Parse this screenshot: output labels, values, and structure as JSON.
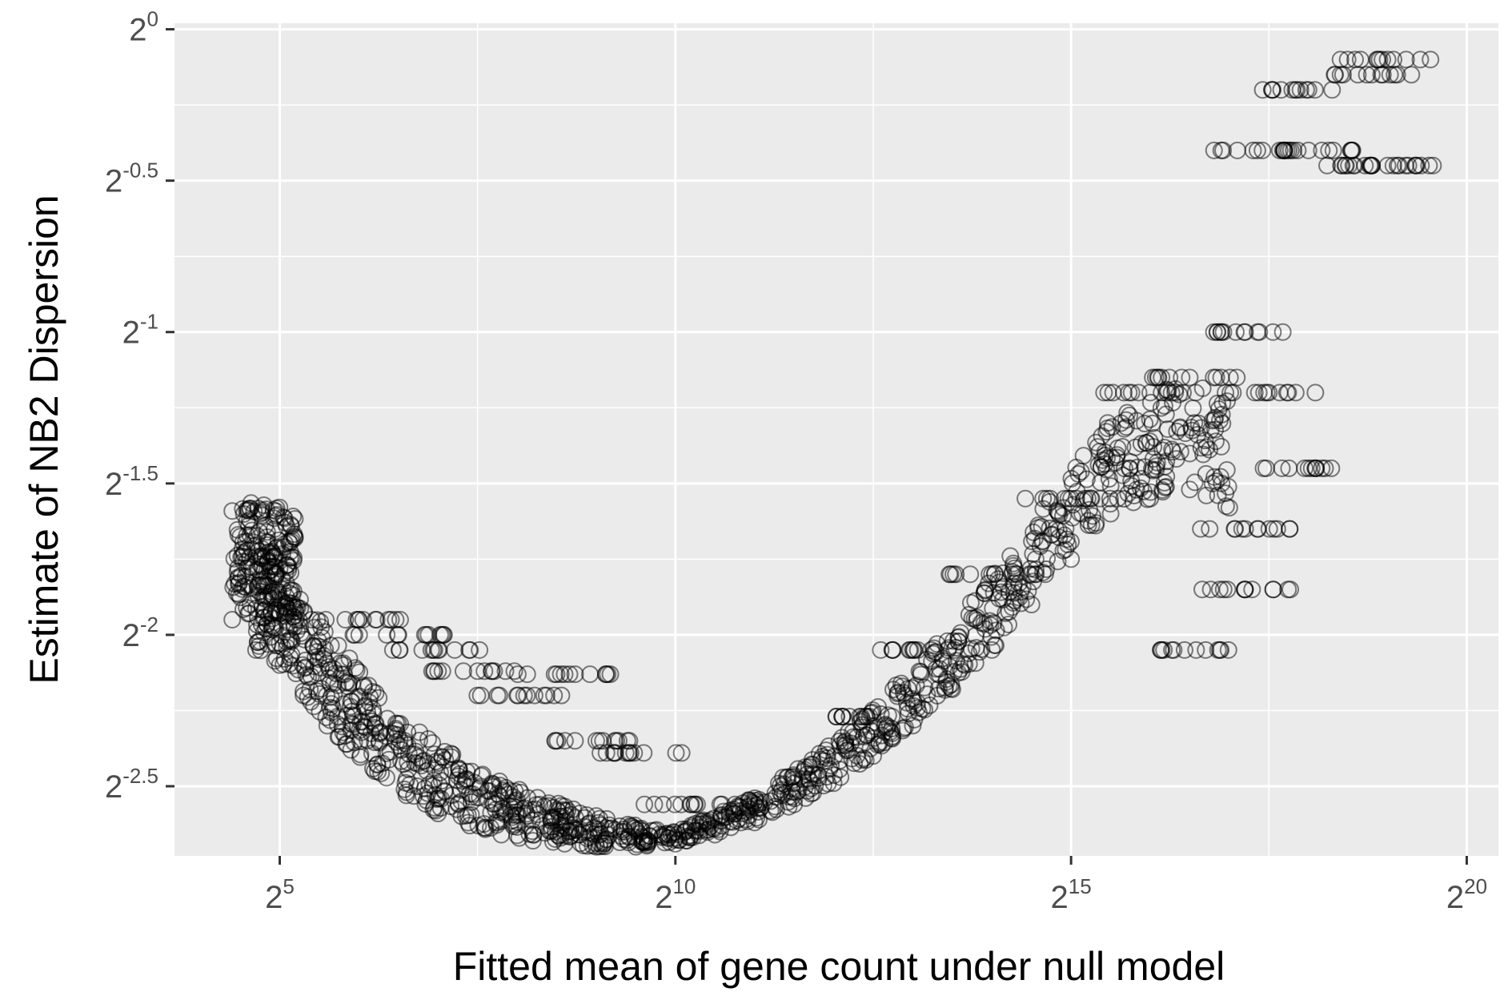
{
  "chart_data": {
    "type": "scatter",
    "title": "",
    "xlabel": "Fitted mean of gene count under null model",
    "ylabel": "Estimate of NB2 Dispersion",
    "x_scale": "log2",
    "y_scale": "log2",
    "xlim_log2": [
      3.67,
      20.4
    ],
    "ylim_log2": [
      -2.73,
      0.02
    ],
    "x_ticks": [
      {
        "base": "2",
        "exp": "5",
        "value": 5
      },
      {
        "base": "2",
        "exp": "10",
        "value": 10
      },
      {
        "base": "2",
        "exp": "15",
        "value": 15
      },
      {
        "base": "2",
        "exp": "20",
        "value": 20
      }
    ],
    "y_ticks": [
      {
        "base": "2",
        "exp": "0",
        "value": 0
      },
      {
        "base": "2",
        "exp": "-0.5",
        "value": -0.5
      },
      {
        "base": "2",
        "exp": "-1",
        "value": -1
      },
      {
        "base": "2",
        "exp": "-1.5",
        "value": -1.5
      },
      {
        "base": "2",
        "exp": "-2",
        "value": -2
      },
      {
        "base": "2",
        "exp": "-2.5",
        "value": -2.5
      }
    ],
    "grid": true,
    "point_style": "open circle, black, semi-transparent",
    "colors": {
      "panel": "#ebebeb",
      "grid": "#ffffff",
      "points": "#000000",
      "tick_text": "#4d4d4d"
    },
    "series": [
      {
        "description_values": "log2 values of (fitted mean, dispersion)",
        "points": [
          [
            4.4,
            -1.95
          ],
          [
            4.6,
            -1.93
          ],
          [
            4.8,
            -1.92
          ],
          [
            5.0,
            -1.93
          ],
          [
            5.2,
            -1.95
          ],
          [
            4.7,
            -2.05
          ],
          [
            5.0,
            -2.1
          ],
          [
            5.3,
            -2.2
          ],
          [
            5.6,
            -2.3
          ],
          [
            5.9,
            -2.38
          ],
          [
            6.2,
            -2.45
          ],
          [
            6.6,
            -2.53
          ],
          [
            7.0,
            -2.59
          ],
          [
            7.4,
            -2.63
          ],
          [
            7.8,
            -2.66
          ],
          [
            8.2,
            -2.68
          ],
          [
            8.6,
            -2.69
          ],
          [
            9.0,
            -2.7
          ],
          [
            9.5,
            -2.7
          ],
          [
            10.0,
            -2.69
          ],
          [
            10.5,
            -2.66
          ],
          [
            11.0,
            -2.62
          ],
          [
            11.5,
            -2.56
          ],
          [
            12.0,
            -2.49
          ],
          [
            12.5,
            -2.4
          ],
          [
            13.0,
            -2.3
          ],
          [
            13.5,
            -2.18
          ],
          [
            14.0,
            -2.05
          ],
          [
            14.5,
            -1.9
          ],
          [
            15.0,
            -1.75
          ],
          [
            15.5,
            -1.6
          ],
          [
            16.0,
            -1.55
          ],
          [
            16.5,
            -1.52
          ],
          [
            17.0,
            -1.58
          ],
          [
            6.0,
            -1.95
          ],
          [
            6.5,
            -2.0
          ],
          [
            7.0,
            -2.05
          ],
          [
            7.5,
            -2.12
          ],
          [
            8.0,
            -2.2
          ],
          [
            8.6,
            -2.13
          ],
          [
            9.0,
            -2.35
          ],
          [
            9.6,
            -2.39
          ],
          [
            10.2,
            -2.56
          ],
          [
            12.2,
            -2.27
          ],
          [
            13.0,
            -2.05
          ],
          [
            14.0,
            -1.8
          ],
          [
            15.0,
            -1.55
          ],
          [
            16.0,
            -1.2
          ],
          [
            16.5,
            -1.15
          ],
          [
            17.2,
            -1.0
          ],
          [
            17.5,
            -1.2
          ],
          [
            18.0,
            -1.45
          ],
          [
            17.2,
            -1.65
          ],
          [
            17.2,
            -1.85
          ],
          [
            16.7,
            -2.05
          ],
          [
            17.3,
            -0.4
          ],
          [
            18.0,
            -0.4
          ],
          [
            18.8,
            -0.45
          ],
          [
            19.0,
            -0.45
          ],
          [
            18.0,
            -0.2
          ],
          [
            18.8,
            -0.15
          ],
          [
            19.0,
            -0.1
          ]
        ]
      }
    ]
  }
}
